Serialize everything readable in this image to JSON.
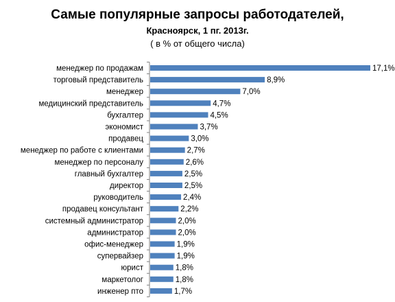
{
  "title": "Самые популярные запросы работодателей,",
  "subtitle": "Красноярск,  1 пг. 2013г.",
  "note": "( в % от общего числа)",
  "colors": {
    "bar": "#4F81BD",
    "axis": "#808080"
  },
  "chart_data": {
    "type": "bar",
    "orientation": "horizontal",
    "title": "Самые популярные запросы работодателей,",
    "subtitle": "Красноярск,  1 пг. 2013г.",
    "unit": "%",
    "xlim": [
      0,
      17.1
    ],
    "grid": false,
    "legend": "none",
    "categories": [
      "менеджер по продажам",
      "торговый представитель",
      "менеджер",
      "медицинский представитель",
      "бухгалтер",
      "экономист",
      "продавец",
      "менеджер по работе с клиентами",
      "менеджер по персоналу",
      "главный бухгалтер",
      "директор",
      "руководитель",
      "продавец консультант",
      "системный администратор",
      "администратор",
      "офис-менеджер",
      "супервайзер",
      "юрист",
      "маркетолог",
      "инженер пто"
    ],
    "values": [
      17.1,
      8.9,
      7.0,
      4.7,
      4.5,
      3.7,
      3.0,
      2.7,
      2.6,
      2.5,
      2.5,
      2.4,
      2.2,
      2.0,
      2.0,
      1.9,
      1.9,
      1.8,
      1.8,
      1.7
    ],
    "value_labels": [
      "17,1%",
      "8,9%",
      "7,0%",
      "4,7%",
      "4,5%",
      "3,7%",
      "3,0%",
      "2,7%",
      "2,6%",
      "2,5%",
      "2,5%",
      "2,4%",
      "2,2%",
      "2,0%",
      "2,0%",
      "1,9%",
      "1,9%",
      "1,8%",
      "1,8%",
      "1,7%"
    ]
  }
}
